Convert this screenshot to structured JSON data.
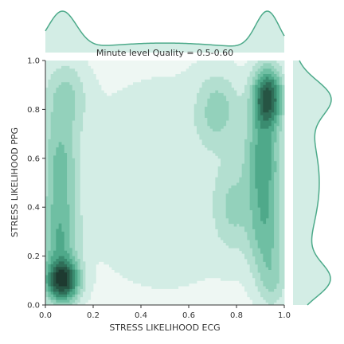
{
  "chart_data": {
    "type": "kde-jointplot",
    "title": "Minute level Quality = 0.5-0.60",
    "xlabel": "STRESS LIKELIHOOD ECG",
    "ylabel": "STRESS LIKELIHOOD PPG",
    "xlim": [
      0.0,
      1.0
    ],
    "ylim": [
      0.0,
      1.0
    ],
    "x_ticks": [
      "0.0",
      "0.2",
      "0.4",
      "0.6",
      "0.8",
      "1.0"
    ],
    "y_ticks": [
      "0.0",
      "0.2",
      "0.4",
      "0.6",
      "0.8",
      "1.0"
    ],
    "grid": false,
    "density_peaks": [
      {
        "x": 0.07,
        "y": 0.1,
        "sx": 0.045,
        "sy": 0.055,
        "w": 1.0
      },
      {
        "x": 0.06,
        "y": 0.28,
        "sx": 0.05,
        "sy": 0.15,
        "w": 0.45
      },
      {
        "x": 0.06,
        "y": 0.6,
        "sx": 0.05,
        "sy": 0.12,
        "w": 0.3
      },
      {
        "x": 0.08,
        "y": 0.85,
        "sx": 0.06,
        "sy": 0.1,
        "w": 0.25
      },
      {
        "x": 0.93,
        "y": 0.85,
        "sx": 0.04,
        "sy": 0.08,
        "w": 0.9
      },
      {
        "x": 0.91,
        "y": 0.6,
        "sx": 0.05,
        "sy": 0.15,
        "w": 0.5
      },
      {
        "x": 0.92,
        "y": 0.3,
        "sx": 0.05,
        "sy": 0.13,
        "w": 0.35
      },
      {
        "x": 0.95,
        "y": 0.1,
        "sx": 0.04,
        "sy": 0.08,
        "w": 0.2
      },
      {
        "x": 0.72,
        "y": 0.8,
        "sx": 0.06,
        "sy": 0.1,
        "w": 0.25
      },
      {
        "x": 0.78,
        "y": 0.4,
        "sx": 0.05,
        "sy": 0.12,
        "w": 0.2
      },
      {
        "x": 0.5,
        "y": 0.5,
        "sx": 0.35,
        "sy": 0.4,
        "w": 0.1
      }
    ],
    "marginal_x": [
      {
        "x": 0.07,
        "s": 0.06,
        "w": 1.0
      },
      {
        "x": 0.93,
        "s": 0.05,
        "w": 1.0
      },
      {
        "x": 0.5,
        "s": 0.3,
        "w": 0.25
      }
    ],
    "marginal_y": [
      {
        "y": 0.1,
        "s": 0.07,
        "w": 0.8
      },
      {
        "y": 0.85,
        "s": 0.07,
        "w": 0.75
      },
      {
        "y": 0.5,
        "s": 0.25,
        "w": 0.7
      }
    ],
    "colors": {
      "line": "#4daa8a",
      "fill": "#d3ede5",
      "levels": [
        "#eef7f3",
        "#d3ede5",
        "#b3dfd0",
        "#93d1bb",
        "#6fbfa3",
        "#4fa98a",
        "#3a8c70",
        "#2f6e58",
        "#265443",
        "#1e3a30"
      ]
    }
  }
}
